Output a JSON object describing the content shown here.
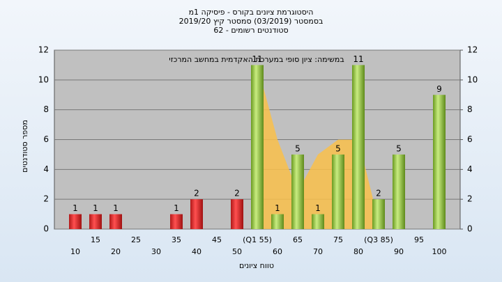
{
  "chart_data": {
    "type": "bar",
    "title": "היסטוגרמת ציונים בקורס - פיסיקה 1מ",
    "subtitle": "בסמסטר  (03/2019)  סמסטר קיץ 2019/20",
    "enrolled": "סטודנטים רשומים - 62",
    "annotation": "במשימה: ציון סופי במערכת האקדמית במחשב המרכזי",
    "y_label": "מספר סטודנטים",
    "x_label": "טווח ציונים",
    "categories": [
      "10",
      "15",
      "20",
      "25",
      "30",
      "35",
      "40",
      "45",
      "50",
      "(Q1 55)",
      "60",
      "65",
      "70",
      "75",
      "80",
      "(Q3 85)",
      "90",
      "95",
      "100"
    ],
    "values": [
      1,
      1,
      1,
      0,
      0,
      1,
      2,
      0,
      2,
      11,
      1,
      5,
      1,
      5,
      11,
      2,
      5,
      0,
      9
    ],
    "colors": [
      "red",
      "red",
      "red",
      "red",
      "red",
      "red",
      "red",
      "red",
      "red",
      "green",
      "green",
      "green",
      "green",
      "green",
      "green",
      "green",
      "green",
      "green",
      "green"
    ],
    "area": {
      "color": "#f9c04a",
      "values": [
        null,
        null,
        null,
        null,
        null,
        null,
        null,
        null,
        null,
        11,
        6,
        2.5,
        5,
        6,
        6,
        0.5,
        null,
        null,
        null
      ]
    },
    "ylim": [
      0,
      12
    ],
    "yticks": [
      0,
      2,
      4,
      6,
      8,
      10,
      12
    ],
    "y2lim": [
      0,
      12
    ],
    "y2ticks": [
      0,
      2,
      4,
      6,
      8,
      10,
      12
    ],
    "grid": true
  }
}
